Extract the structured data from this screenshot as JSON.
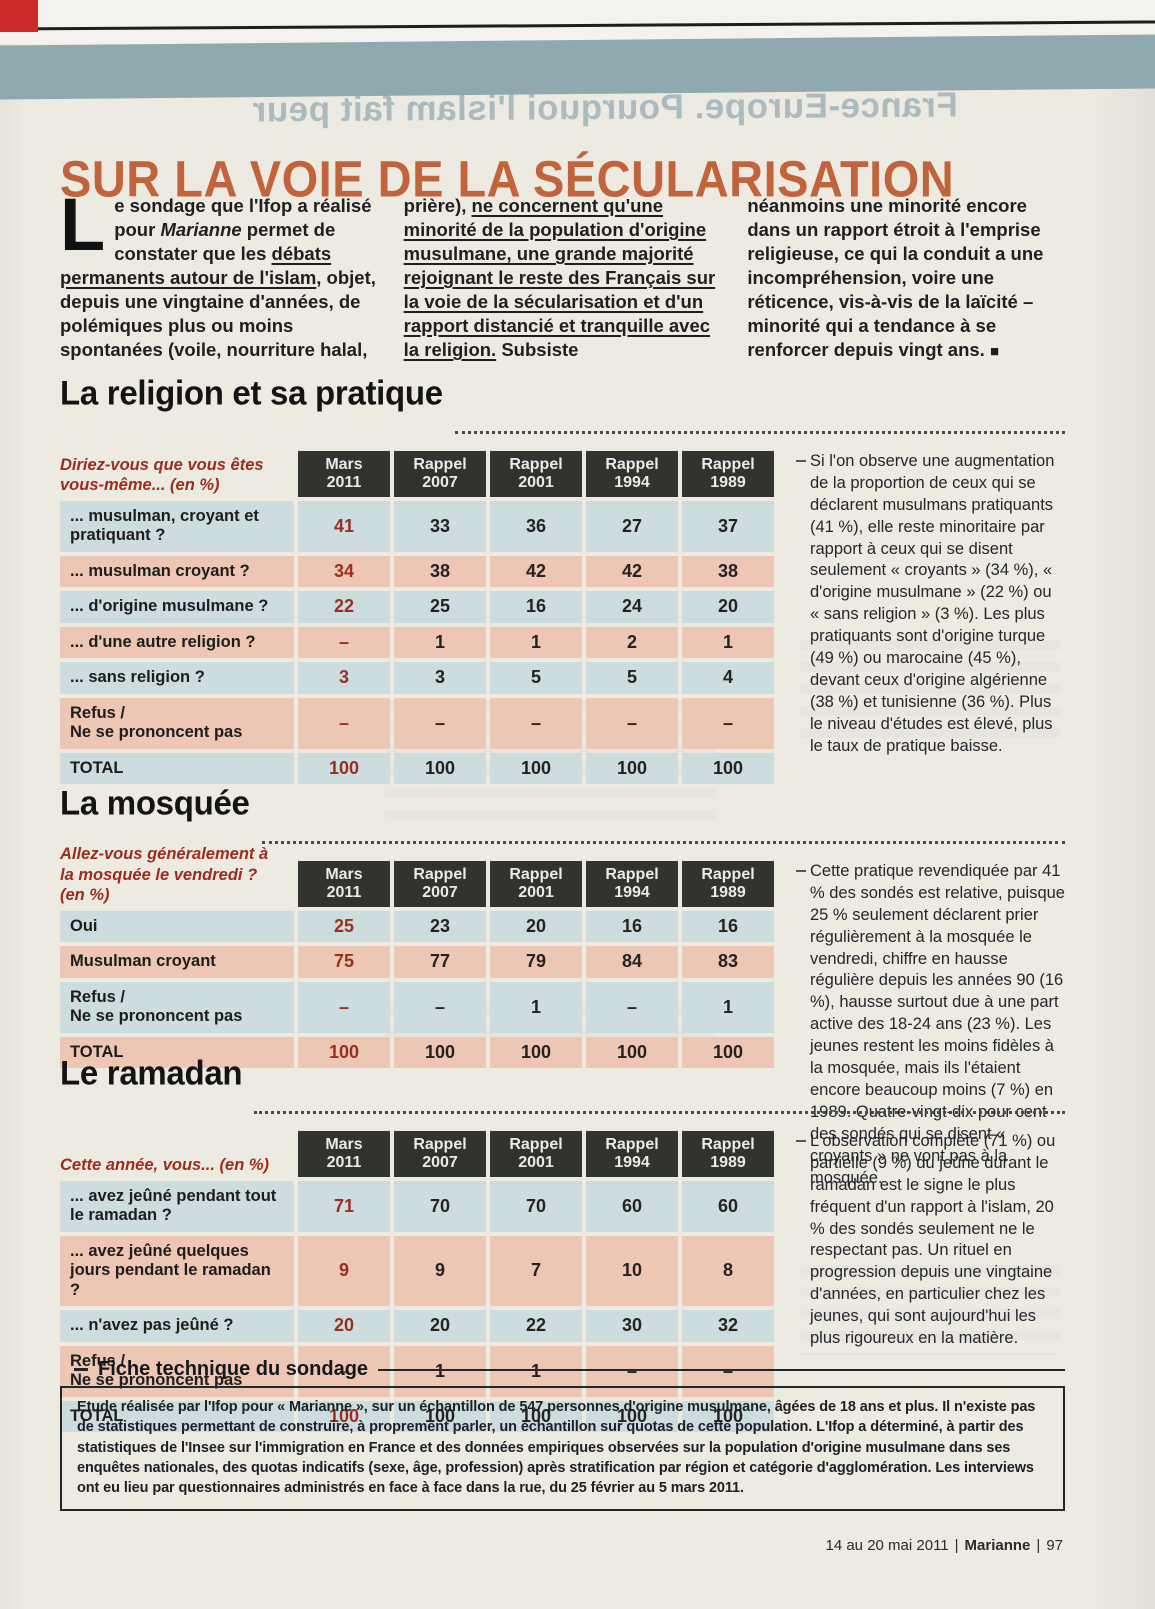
{
  "masthead": {
    "ghost_title": "France-Europe. Pourquoi l'islam fait peur"
  },
  "article": {
    "title": "SUR LA VOIE DE LA SÉCULARISATION",
    "intro": {
      "dropcap": "L",
      "col1_s1": "e sondage que l'Ifop a réalisé pour ",
      "col1_s2_italic": "Marianne",
      "col1_s3": " permet de constater que les ",
      "col1_s4_underline": "débats permanents autour de l'islam",
      "col1_s5": ", objet, depuis une vingtaine d'années, de polémiques plus ou moins spontanées (voile, nourriture halal,",
      "col2_s1": "prière), ",
      "col2_s2_underline": "ne concernent qu'une minorité de la population d'origine musulmane, une grande majorité rejoignant le reste des Français sur la voie de la sécularisation et d'un rapport distancié et tranquille avec la religion.",
      "col2_s3": " Subsiste",
      "col3_s1": "néanmoins une minorité encore dans un rapport étroit à l'emprise religieuse, ce qui la conduit a une incompréhension, voire une réticence, vis-à-vis de la laïcité – minorité qui a tendance à se renforcer depuis vingt ans. ",
      "col3_end_mark": "■"
    }
  },
  "sections": [
    {
      "title": "La religion et sa pratique",
      "question": "Diriez-vous que vous êtes vous-même... (en %)",
      "headers": [
        "Mars\n2011",
        "Rappel\n2007",
        "Rappel\n2001",
        "Rappel\n1994",
        "Rappel\n1989"
      ],
      "rows": [
        {
          "label": "... musulman, croyant et pratiquant ?",
          "values": [
            "41",
            "33",
            "36",
            "27",
            "37"
          ]
        },
        {
          "label": "... musulman croyant ?",
          "values": [
            "34",
            "38",
            "42",
            "42",
            "38"
          ]
        },
        {
          "label": "... d'origine musulmane ?",
          "values": [
            "22",
            "25",
            "16",
            "24",
            "20"
          ]
        },
        {
          "label": "... d'une autre religion ?",
          "values": [
            "–",
            "1",
            "1",
            "2",
            "1"
          ]
        },
        {
          "label": "... sans religion ?",
          "values": [
            "3",
            "3",
            "5",
            "5",
            "4"
          ]
        },
        {
          "label": "Refus /\nNe se prononcent pas",
          "values": [
            "–",
            "–",
            "–",
            "–",
            "–"
          ]
        },
        {
          "label": "TOTAL",
          "values": [
            "100",
            "100",
            "100",
            "100",
            "100"
          ]
        }
      ],
      "comment": "Si l'on observe une augmentation de la proportion de ceux qui se déclarent musulmans pratiquants (41 %), elle reste minoritaire par rapport à ceux qui se disent seulement « croyants » (34 %), « d'origine musulmane » (22 %) ou « sans religion » (3 %). Les plus pratiquants sont d'origine turque (49 %) ou marocaine (45 %), devant ceux d'origine algérienne (38 %) et tunisienne (36 %). Plus le niveau d'études est élevé, plus le taux de pratique baisse."
    },
    {
      "title": "La mosquée",
      "question": "Allez-vous généralement à la mosquée le vendredi ? (en %)",
      "headers": [
        "Mars\n2011",
        "Rappel\n2007",
        "Rappel\n2001",
        "Rappel\n1994",
        "Rappel\n1989"
      ],
      "rows": [
        {
          "label": "Oui",
          "values": [
            "25",
            "23",
            "20",
            "16",
            "16"
          ]
        },
        {
          "label": "Musulman croyant",
          "values": [
            "75",
            "77",
            "79",
            "84",
            "83"
          ]
        },
        {
          "label": "Refus /\nNe se prononcent pas",
          "values": [
            "–",
            "–",
            "1",
            "–",
            "1"
          ]
        },
        {
          "label": "TOTAL",
          "values": [
            "100",
            "100",
            "100",
            "100",
            "100"
          ]
        }
      ],
      "comment": "Cette pratique revendiquée par 41 % des sondés est relative, puisque 25 % seulement déclarent prier régulièrement à la mosquée le vendredi, chiffre en hausse régulière depuis les années 90 (16 %), hausse surtout due à une part active des 18-24 ans (23 %). Les jeunes restent les moins fidèles à la mosquée, mais ils l'étaient encore beaucoup moins (7 %) en 1989. Quatre-vingt-dix pour cent des sondés qui se disent « croyants » ne vont pas à la mosquée."
    },
    {
      "title": "Le ramadan",
      "question": "Cette année, vous... (en %)",
      "headers": [
        "Mars\n2011",
        "Rappel\n2007",
        "Rappel\n2001",
        "Rappel\n1994",
        "Rappel\n1989"
      ],
      "rows": [
        {
          "label": "... avez jeûné pendant tout le ramadan ?",
          "values": [
            "71",
            "70",
            "70",
            "60",
            "60"
          ]
        },
        {
          "label": "... avez jeûné quelques jours pendant le ramadan ?",
          "values": [
            "9",
            "9",
            "7",
            "10",
            "8"
          ]
        },
        {
          "label": "... n'avez pas jeûné ?",
          "values": [
            "20",
            "20",
            "22",
            "30",
            "32"
          ]
        },
        {
          "label": "Refus /\nNe se prononcent pas",
          "values": [
            "–",
            "1",
            "1",
            "–",
            "–"
          ]
        },
        {
          "label": "TOTAL",
          "values": [
            "100",
            "100",
            "100",
            "100",
            "100"
          ]
        }
      ],
      "comment": "L'observation complète (71 %) ou partielle (9 %) du jeûne durant le ramadan est le signe le plus fréquent d'un rapport à l'islam, 20 % des sondés seulement ne le respectant pas. Un rituel en progression depuis une vingtaine d'années, en particulier chez les jeunes, qui sont aujourd'hui les plus rigoureux en la matière."
    }
  ],
  "fiche": {
    "title": "Fiche technique du sondage",
    "text": "Etude réalisée par l'Ifop pour « Marianne », sur un échantillon de 547 personnes d'origine musulmane, âgées de 18 ans et plus. Il n'existe pas de statistiques permettant de construire, à proprement parler, un échantillon sur quotas de cette population. L'Ifop a déterminé, à partir des statistiques de l'Insee sur l'immigration en France et des données empiriques observées sur la population d'origine musulmane dans ses enquêtes nationales, des quotas indicatifs (sexe, âge, profession) après stratification par région et catégorie d'agglomération. Les interviews ont eu lieu par questionnaires administrés en face à face dans la rue, du 25 février au 5 mars 2011."
  },
  "footer": {
    "date": "14 au 20 mai 2011",
    "separator": "|",
    "magazine": "Marianne",
    "page_number": "97"
  },
  "colors": {
    "title_orange": "#c1643c",
    "table_header_bg": "#31332e",
    "row_blue": "#cddcdf",
    "row_salmon": "#edc6b4",
    "highlight_red": "#992f20",
    "question_red": "#9e2c1a",
    "band_teal": "#90a9ae",
    "corner_red": "#cc2a28"
  }
}
